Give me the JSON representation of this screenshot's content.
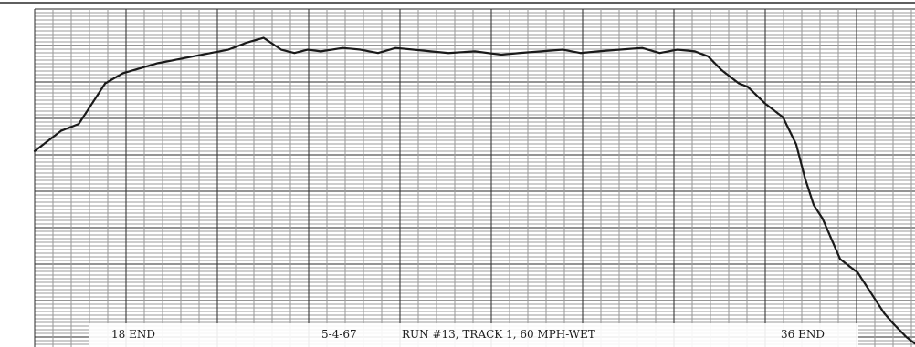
{
  "chart_data": {
    "type": "line",
    "x_range": [
      0,
      100
    ],
    "y_range": [
      0,
      100
    ],
    "grid": true,
    "series": [
      {
        "x": [
          0.0,
          2.0,
          3.0,
          5.0,
          6.0,
          8.0,
          10.0,
          12.0,
          14.0,
          16.0,
          18.0,
          20.0,
          22.0,
          24.0,
          26.0,
          28.0,
          29.5,
          31.0,
          32.5,
          35.0,
          37.0,
          39.0,
          41.0,
          43.0,
          45.0,
          47.0,
          50.0,
          53.0,
          55.0,
          57.5,
          60.0,
          62.0,
          64.0,
          66.5,
          69.0,
          71.0,
          73.0,
          75.0,
          76.5,
          78.0,
          79.0,
          80.0,
          81.0,
          83.0,
          85.0,
          86.5,
          87.5,
          88.5,
          89.5,
          90.5,
          91.5,
          92.5,
          93.5,
          94.5,
          95.5,
          96.5,
          97.5,
          99.0,
          100.0
        ],
        "y": [
          58.0,
          62.0,
          64.0,
          66.0,
          70.0,
          78.0,
          81.0,
          82.5,
          84.0,
          85.0,
          86.0,
          87.0,
          88.0,
          90.0,
          91.5,
          88.0,
          87.0,
          88.0,
          87.5,
          88.5,
          88.0,
          87.0,
          88.5,
          88.0,
          87.5,
          87.0,
          87.5,
          86.5,
          87.0,
          87.5,
          88.0,
          87.0,
          87.5,
          88.0,
          88.5,
          87.0,
          88.0,
          87.5,
          86.0,
          82.0,
          80.0,
          78.0,
          77.0,
          72.0,
          68.0,
          60.0,
          50.0,
          42.0,
          38.0,
          32.0,
          26.0,
          24.0,
          22.0,
          18.0,
          14.0,
          10.0,
          7.0,
          3.0,
          1.0
        ]
      }
    ],
    "annotations": [
      "18 END",
      "5-4-67",
      "RUN #13, TRACK 1, 60 MPH-WET",
      "36 END"
    ]
  },
  "colors": {
    "paper": "#ffffff",
    "grid_fine": "#999999",
    "grid_major": "#2a2a2a",
    "trace": "#1a1a1a",
    "text": "#1d1d1d"
  }
}
